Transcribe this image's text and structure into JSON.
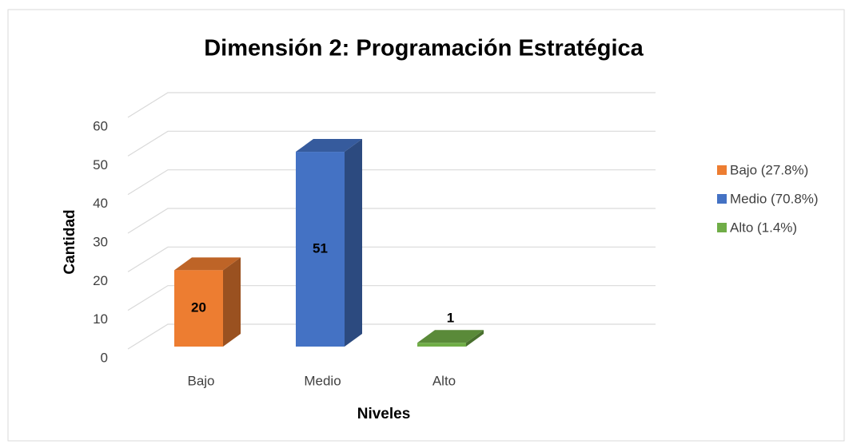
{
  "chart_data": {
    "type": "bar3d",
    "title": "Dimensión 2: Programación Estratégica",
    "x_label": "Niveles",
    "y_label": "Cantidad",
    "categories": [
      "Bajo",
      "Medio",
      "Alto"
    ],
    "values": [
      20,
      51,
      1
    ],
    "colors": [
      "#ed7d31",
      "#4472c4",
      "#70ad47"
    ],
    "legend_labels": [
      "Bajo (27.8%)",
      "Medio (70.8%)",
      "Alto (1.4%)"
    ],
    "ylim": [
      0,
      60
    ],
    "yticks": [
      0,
      10,
      20,
      30,
      40,
      50,
      60
    ],
    "grid": true,
    "legend": "right"
  }
}
